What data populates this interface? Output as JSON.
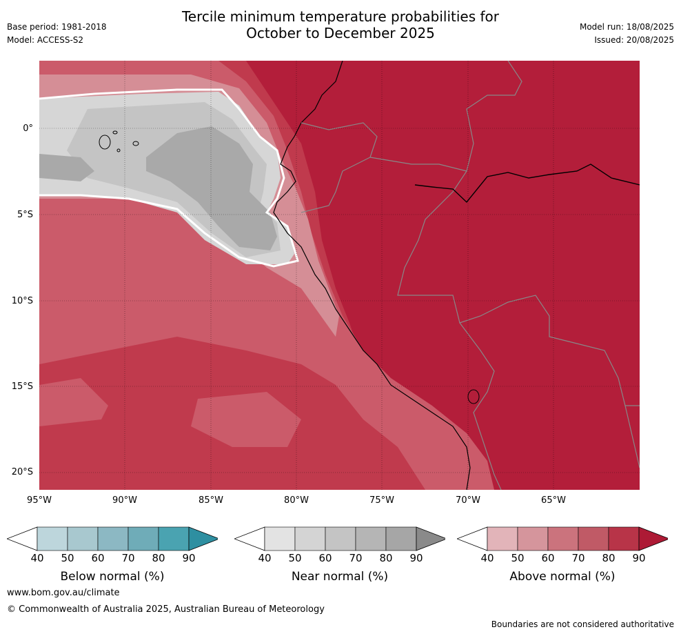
{
  "title_line1": "Tercile minimum temperature probabilities for",
  "title_line2": "October to December 2025",
  "meta_left": {
    "base_period": "Base period: 1981-2018",
    "model": "Model: ACCESS-S2"
  },
  "meta_right": {
    "model_run": "Model run: 18/08/2025",
    "issued": "Issued: 20/08/2025"
  },
  "map": {
    "lat_labels": [
      "0°",
      "5°S",
      "10°S",
      "15°S",
      "20°S"
    ],
    "lon_labels": [
      "95°W",
      "90°W",
      "85°W",
      "80°W",
      "75°W",
      "70°W",
      "65°W"
    ],
    "colors": {
      "above_90": "#b31e3a",
      "above_80": "#c03a4d",
      "above_70": "#cb5b6a",
      "near_70": "#c4c4c4",
      "near_80": "#a9a9a9",
      "near_60": "#d6d6d6",
      "above_60": "#d58e96",
      "above_50": "#e2b4b9"
    }
  },
  "colorbars": [
    {
      "name": "below",
      "title": "Below normal (%)",
      "ticks": [
        "40",
        "50",
        "60",
        "70",
        "80",
        "90"
      ],
      "colors": [
        "#bdd6dc",
        "#a8c8cf",
        "#8cb8c3",
        "#6facb8",
        "#4aa3b1",
        "#2e8fa1"
      ]
    },
    {
      "name": "near",
      "title": "Near normal (%)",
      "ticks": [
        "40",
        "50",
        "60",
        "70",
        "80",
        "90"
      ],
      "colors": [
        "#e3e3e3",
        "#d4d4d4",
        "#c4c4c4",
        "#b5b5b5",
        "#a6a6a6",
        "#8a8a8a"
      ]
    },
    {
      "name": "above",
      "title": "Above normal (%)",
      "ticks": [
        "40",
        "50",
        "60",
        "70",
        "80",
        "90"
      ],
      "colors": [
        "#e2b4b9",
        "#d5959c",
        "#cb737d",
        "#c05a66",
        "#b83448",
        "#ad1a35"
      ]
    }
  ],
  "footer": {
    "website": "www.bom.gov.au/climate",
    "copyright": "© Commonwealth of Australia 2025, Australian Bureau of Meteorology",
    "disclaimer": "Boundaries are not considered authoritative"
  }
}
